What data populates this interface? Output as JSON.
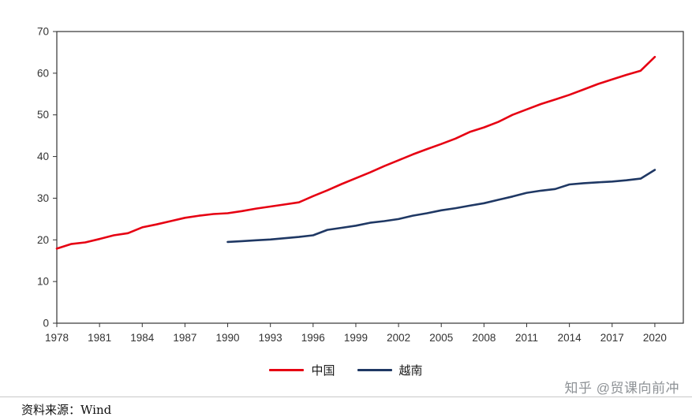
{
  "chart_data": {
    "type": "line",
    "title": "",
    "xlabel": "",
    "ylabel": "",
    "xlim": [
      1978,
      2022
    ],
    "ylim": [
      0,
      70
    ],
    "x_ticks": [
      1978,
      1981,
      1984,
      1987,
      1990,
      1993,
      1996,
      1999,
      2002,
      2005,
      2008,
      2011,
      2014,
      2017,
      2020
    ],
    "y_ticks": [
      0,
      10,
      20,
      30,
      40,
      50,
      60,
      70
    ],
    "grid": false,
    "legend_position": "bottom",
    "axis_color": "#333333",
    "text_color": "#333333",
    "series": [
      {
        "name": "中国",
        "color": "#e60012",
        "x_start": 1978,
        "values": [
          17.9,
          19.0,
          19.4,
          20.2,
          21.1,
          21.6,
          23.0,
          23.7,
          24.5,
          25.3,
          25.8,
          26.2,
          26.4,
          26.9,
          27.5,
          28.0,
          28.5,
          29.0,
          30.5,
          31.9,
          33.4,
          34.8,
          36.2,
          37.7,
          39.1,
          40.5,
          41.8,
          43.0,
          44.3,
          45.9,
          47.0,
          48.3,
          50.0,
          51.3,
          52.6,
          53.7,
          54.8,
          56.1,
          57.4,
          58.5,
          59.6,
          60.6,
          63.9
        ]
      },
      {
        "name": "越南",
        "color": "#1f3864",
        "x_start": 1990,
        "values": [
          19.5,
          19.7,
          19.9,
          20.1,
          20.4,
          20.7,
          21.1,
          22.4,
          22.9,
          23.4,
          24.1,
          24.5,
          25.0,
          25.8,
          26.4,
          27.1,
          27.6,
          28.2,
          28.8,
          29.6,
          30.4,
          31.3,
          31.8,
          32.2,
          33.3,
          33.6,
          33.8,
          34.0,
          34.3,
          34.7,
          36.8
        ]
      }
    ]
  },
  "watermark": {
    "text": "知乎 @贸课向前冲"
  },
  "footer": {
    "source_label": "资料来源：Wind"
  }
}
